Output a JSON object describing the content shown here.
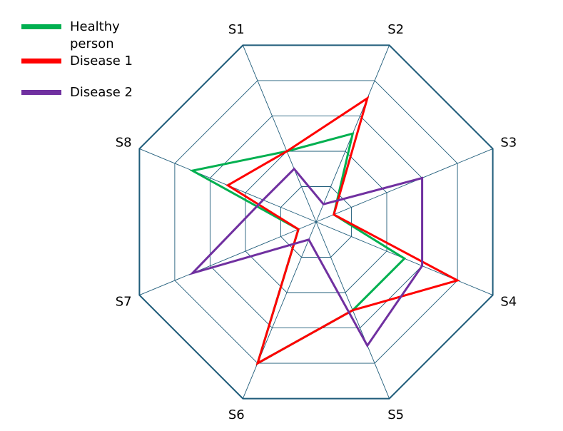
{
  "chart_data": {
    "type": "radar",
    "title": "",
    "categories": [
      "S1",
      "S2",
      "S3",
      "S4",
      "S5",
      "S6",
      "S7",
      "S8"
    ],
    "rmax": 5,
    "gridlines": 5,
    "legend_position": "top-left",
    "series": [
      {
        "name": "Healthy person",
        "color": "#00b050",
        "values": [
          2.0,
          2.5,
          0.5,
          2.5,
          2.5,
          4.0,
          0.5,
          3.5
        ]
      },
      {
        "name": "Disease 1",
        "color": "#ff0000",
        "values": [
          2.0,
          3.5,
          0.5,
          4.0,
          2.5,
          4.0,
          0.5,
          2.5
        ]
      },
      {
        "name": "Disease 2",
        "color": "#7030a0",
        "values": [
          1.5,
          0.5,
          3.0,
          3.0,
          3.5,
          0.5,
          3.5,
          1.5
        ]
      }
    ]
  }
}
